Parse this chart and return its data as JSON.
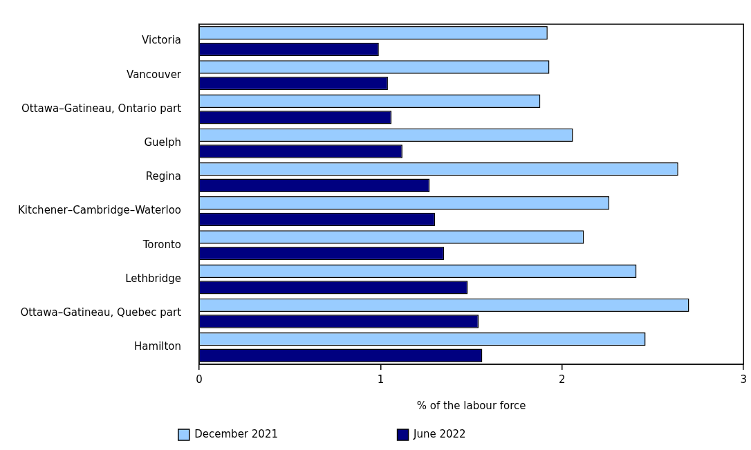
{
  "chart_data": {
    "type": "bar",
    "orientation": "horizontal",
    "xlabel": "% of the labour force",
    "categories": [
      "Victoria",
      "Vancouver",
      "Ottawa–Gatineau, Ontario part",
      "Guelph",
      "Regina",
      "Kitchener–Cambridge–Waterloo",
      "Toronto",
      "Lethbridge",
      "Ottawa–Gatineau, Quebec part",
      "Hamilton"
    ],
    "series": [
      {
        "name": "December 2021",
        "color": "#99ccff",
        "values": [
          1.92,
          1.93,
          1.88,
          2.06,
          2.64,
          2.26,
          2.12,
          2.41,
          2.7,
          2.46
        ]
      },
      {
        "name": "June 2022",
        "color": "#000080",
        "values": [
          0.99,
          1.04,
          1.06,
          1.12,
          1.27,
          1.3,
          1.35,
          1.48,
          1.54,
          1.56
        ]
      }
    ],
    "xlim": [
      0,
      3
    ],
    "xticks": [
      0,
      1,
      2,
      3
    ],
    "grid": false,
    "legend": "bottom"
  }
}
